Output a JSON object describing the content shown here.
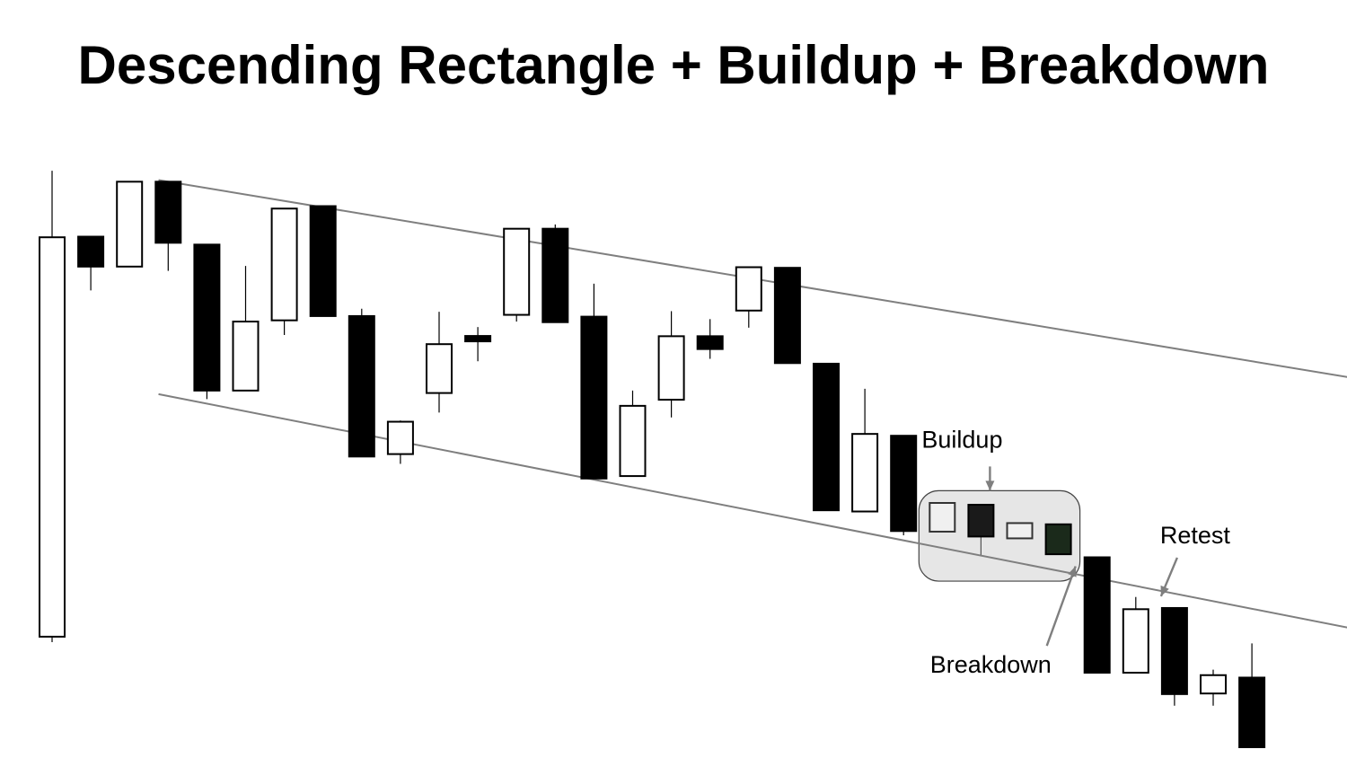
{
  "chart_data": {
    "type": "candlestick",
    "title": "Descending Rectangle + Buildup + Breakdown",
    "xlabel": "",
    "ylabel": "",
    "ylim": [
      0,
      100
    ],
    "grid": false,
    "colors": {
      "bullish_body": "#ffffff",
      "bearish_body": "#000000",
      "wick": "#000000",
      "channel_line": "#7f7f7f",
      "buildup_box": "#e6e6e6",
      "annotation_arrow": "#7f7f7f"
    },
    "candles": [
      {
        "open": 18.1,
        "high": 94.4,
        "low": 17.2,
        "close": 83.5
      },
      {
        "open": 83.6,
        "high": 83.6,
        "low": 74.8,
        "close": 78.7
      },
      {
        "open": 78.7,
        "high": 92.6,
        "low": 78.7,
        "close": 92.6
      },
      {
        "open": 92.6,
        "high": 92.6,
        "low": 78.0,
        "close": 82.6
      },
      {
        "open": 82.3,
        "high": 82.3,
        "low": 57.0,
        "close": 58.4
      },
      {
        "open": 58.4,
        "high": 78.8,
        "low": 58.4,
        "close": 69.7
      },
      {
        "open": 69.9,
        "high": 88.2,
        "low": 67.5,
        "close": 88.2
      },
      {
        "open": 88.6,
        "high": 88.6,
        "low": 70.6,
        "close": 70.6
      },
      {
        "open": 70.6,
        "high": 71.8,
        "low": 47.6,
        "close": 47.6
      },
      {
        "open": 48.0,
        "high": 53.5,
        "low": 46.4,
        "close": 53.3
      },
      {
        "open": 58.0,
        "high": 71.3,
        "low": 54.8,
        "close": 66.0
      },
      {
        "open": 67.3,
        "high": 68.8,
        "low": 63.2,
        "close": 66.5
      },
      {
        "open": 70.8,
        "high": 84.9,
        "low": 69.7,
        "close": 84.9
      },
      {
        "open": 84.9,
        "high": 85.6,
        "low": 69.6,
        "close": 69.6
      },
      {
        "open": 70.5,
        "high": 75.9,
        "low": 44.0,
        "close": 44.0
      },
      {
        "open": 44.4,
        "high": 58.4,
        "low": 44.4,
        "close": 55.9
      },
      {
        "open": 56.9,
        "high": 71.4,
        "low": 54.0,
        "close": 67.3
      },
      {
        "open": 67.3,
        "high": 70.1,
        "low": 63.6,
        "close": 65.2
      },
      {
        "open": 71.5,
        "high": 78.6,
        "low": 68.7,
        "close": 78.6
      },
      {
        "open": 78.5,
        "high": 78.5,
        "low": 62.9,
        "close": 62.9
      },
      {
        "open": 62.8,
        "high": 62.8,
        "low": 38.8,
        "close": 38.8
      },
      {
        "open": 38.6,
        "high": 58.7,
        "low": 38.6,
        "close": 51.3
      },
      {
        "open": 51.0,
        "high": 51.0,
        "low": 34.7,
        "close": 35.4
      },
      {
        "open": 35.3,
        "high": 40.0,
        "low": 35.3,
        "close": 40.0
      },
      {
        "open": 39.7,
        "high": 39.7,
        "low": 31.5,
        "close": 34.5
      },
      {
        "open": 34.2,
        "high": 36.7,
        "low": 34.2,
        "close": 36.7
      },
      {
        "open": 36.5,
        "high": 36.5,
        "low": 31.6,
        "close": 31.6
      },
      {
        "open": 31.1,
        "high": 31.1,
        "low": 12.2,
        "close": 12.2
      },
      {
        "open": 12.2,
        "high": 24.6,
        "low": 12.2,
        "close": 22.6
      },
      {
        "open": 22.8,
        "high": 22.8,
        "low": 6.8,
        "close": 8.7
      },
      {
        "open": 8.8,
        "high": 12.7,
        "low": 6.8,
        "close": 11.8
      },
      {
        "open": 11.4,
        "high": 17.0,
        "low": 0.0,
        "close": 0.0
      }
    ],
    "channel": {
      "upper": [
        {
          "x": 3,
          "y": 92.6
        },
        {
          "x": 34,
          "y": 60.1
        }
      ],
      "lower": [
        {
          "x": 3,
          "y": 57.5
        },
        {
          "x": 34,
          "y": 19.0
        }
      ]
    },
    "buildup_region": {
      "start": 23,
      "end": 26,
      "y_low": 27.2,
      "y_high": 42.0
    },
    "annotations": [
      {
        "text": "Buildup",
        "anchor": "above-box",
        "arrow_to_candle": 24
      },
      {
        "text": "Breakdown",
        "anchor": "below-left",
        "arrow_to_candle": 27
      },
      {
        "text": "Retest",
        "anchor": "above-right",
        "arrow_to_candle": 29
      }
    ]
  }
}
